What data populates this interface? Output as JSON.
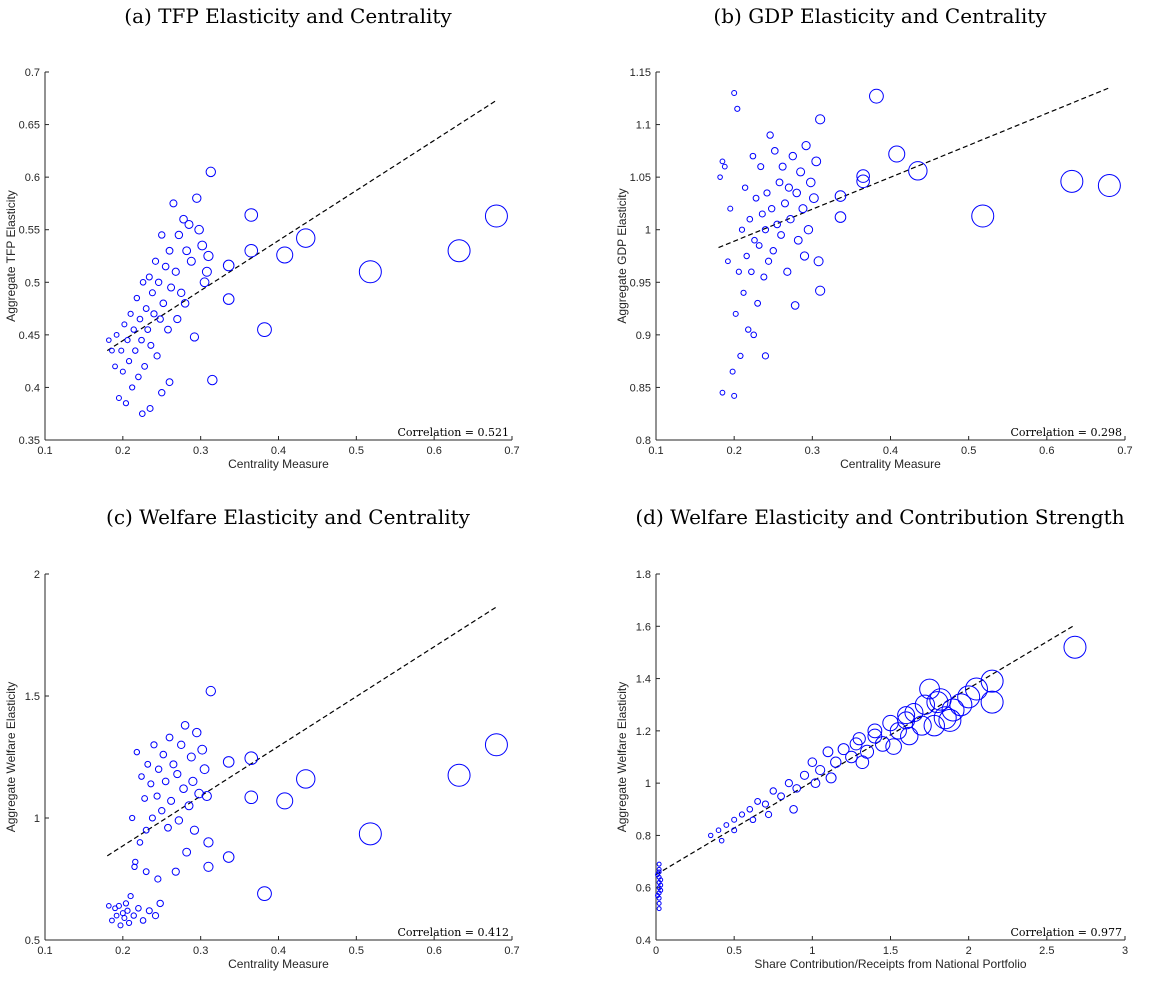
{
  "figure": {
    "titles": [
      "(a) TFP Elasticity and Centrality",
      "(b) GDP Elasticity and Centrality",
      "(c) Welfare Elasticity and Centrality",
      "(d) Welfare Elasticity and Contribution Strength"
    ]
  },
  "chart_data": [
    {
      "type": "scatter",
      "title": "(a) TFP Elasticity and Centrality",
      "xlabel": "Centrality Measure",
      "ylabel": "Aggregate TFP Elasticity",
      "xlim": [
        0.1,
        0.7
      ],
      "ylim": [
        0.35,
        0.7
      ],
      "xticks": [
        0.1,
        0.2,
        0.3,
        0.4,
        0.5,
        0.6,
        0.7
      ],
      "yticks": [
        0.35,
        0.4,
        0.45,
        0.5,
        0.55,
        0.6,
        0.65,
        0.7
      ],
      "annotation": "Correlation = 0.521",
      "color": "#0000ff",
      "grid": false,
      "fit_line": {
        "x": [
          0.18,
          0.68
        ],
        "y": [
          0.435,
          0.673
        ]
      },
      "points": [
        [
          0.68,
          0.563
        ],
        [
          0.632,
          0.53
        ],
        [
          0.518,
          0.51
        ],
        [
          0.435,
          0.542
        ],
        [
          0.408,
          0.526
        ],
        [
          0.382,
          0.455
        ],
        [
          0.365,
          0.564
        ],
        [
          0.365,
          0.53
        ],
        [
          0.336,
          0.484
        ],
        [
          0.336,
          0.516
        ],
        [
          0.315,
          0.407
        ],
        [
          0.313,
          0.605
        ],
        [
          0.31,
          0.525
        ],
        [
          0.308,
          0.51
        ],
        [
          0.305,
          0.5
        ],
        [
          0.302,
          0.535
        ],
        [
          0.298,
          0.55
        ],
        [
          0.295,
          0.58
        ],
        [
          0.292,
          0.448
        ],
        [
          0.288,
          0.52
        ],
        [
          0.285,
          0.555
        ],
        [
          0.282,
          0.53
        ],
        [
          0.28,
          0.48
        ],
        [
          0.278,
          0.56
        ],
        [
          0.275,
          0.49
        ],
        [
          0.272,
          0.545
        ],
        [
          0.27,
          0.465
        ],
        [
          0.268,
          0.51
        ],
        [
          0.265,
          0.575
        ],
        [
          0.262,
          0.495
        ],
        [
          0.26,
          0.53
        ],
        [
          0.258,
          0.455
        ],
        [
          0.255,
          0.515
        ],
        [
          0.252,
          0.48
        ],
        [
          0.25,
          0.545
        ],
        [
          0.248,
          0.465
        ],
        [
          0.246,
          0.5
        ],
        [
          0.244,
          0.43
        ],
        [
          0.242,
          0.52
        ],
        [
          0.24,
          0.47
        ],
        [
          0.238,
          0.49
        ],
        [
          0.236,
          0.44
        ],
        [
          0.234,
          0.505
        ],
        [
          0.232,
          0.455
        ],
        [
          0.23,
          0.475
        ],
        [
          0.228,
          0.42
        ],
        [
          0.226,
          0.5
        ],
        [
          0.224,
          0.445
        ],
        [
          0.222,
          0.465
        ],
        [
          0.22,
          0.41
        ],
        [
          0.218,
          0.485
        ],
        [
          0.216,
          0.435
        ],
        [
          0.214,
          0.455
        ],
        [
          0.212,
          0.4
        ],
        [
          0.21,
          0.47
        ],
        [
          0.208,
          0.425
        ],
        [
          0.206,
          0.445
        ],
        [
          0.204,
          0.385
        ],
        [
          0.202,
          0.46
        ],
        [
          0.2,
          0.415
        ],
        [
          0.198,
          0.435
        ],
        [
          0.195,
          0.39
        ],
        [
          0.192,
          0.45
        ],
        [
          0.19,
          0.42
        ],
        [
          0.186,
          0.435
        ],
        [
          0.182,
          0.445
        ],
        [
          0.25,
          0.395
        ],
        [
          0.26,
          0.405
        ],
        [
          0.225,
          0.375
        ],
        [
          0.235,
          0.38
        ]
      ]
    },
    {
      "type": "scatter",
      "title": "(b) GDP Elasticity and Centrality",
      "xlabel": "Centrality Measure",
      "ylabel": "Aggregate GDP Elasticity",
      "xlim": [
        0.1,
        0.7
      ],
      "ylim": [
        0.8,
        1.15
      ],
      "xticks": [
        0.1,
        0.2,
        0.3,
        0.4,
        0.5,
        0.6,
        0.7
      ],
      "yticks": [
        0.8,
        0.85,
        0.9,
        0.95,
        1,
        1.05,
        1.1,
        1.15
      ],
      "annotation": "Correlation = 0.298",
      "color": "#0000ff",
      "grid": false,
      "fit_line": {
        "x": [
          0.18,
          0.68
        ],
        "y": [
          0.983,
          1.135
        ]
      },
      "points": [
        [
          0.68,
          1.042
        ],
        [
          0.632,
          1.046
        ],
        [
          0.518,
          1.013
        ],
        [
          0.435,
          1.056
        ],
        [
          0.408,
          1.072
        ],
        [
          0.382,
          1.127
        ],
        [
          0.365,
          1.046
        ],
        [
          0.365,
          1.051
        ],
        [
          0.336,
          1.032
        ],
        [
          0.336,
          1.012
        ],
        [
          0.31,
          1.105
        ],
        [
          0.31,
          0.942
        ],
        [
          0.308,
          0.97
        ],
        [
          0.305,
          1.065
        ],
        [
          0.302,
          1.03
        ],
        [
          0.298,
          1.045
        ],
        [
          0.295,
          1.0
        ],
        [
          0.292,
          1.08
        ],
        [
          0.29,
          0.975
        ],
        [
          0.288,
          1.02
        ],
        [
          0.285,
          1.055
        ],
        [
          0.282,
          0.99
        ],
        [
          0.28,
          1.035
        ],
        [
          0.278,
          0.928
        ],
        [
          0.275,
          1.07
        ],
        [
          0.272,
          1.01
        ],
        [
          0.27,
          1.04
        ],
        [
          0.268,
          0.96
        ],
        [
          0.265,
          1.025
        ],
        [
          0.262,
          1.06
        ],
        [
          0.26,
          0.995
        ],
        [
          0.258,
          1.045
        ],
        [
          0.255,
          1.005
        ],
        [
          0.252,
          1.075
        ],
        [
          0.25,
          0.98
        ],
        [
          0.248,
          1.02
        ],
        [
          0.246,
          1.09
        ],
        [
          0.244,
          0.97
        ],
        [
          0.242,
          1.035
        ],
        [
          0.24,
          1.0
        ],
        [
          0.238,
          0.955
        ],
        [
          0.236,
          1.015
        ],
        [
          0.234,
          1.06
        ],
        [
          0.232,
          0.985
        ],
        [
          0.23,
          0.93
        ],
        [
          0.228,
          1.03
        ],
        [
          0.226,
          0.99
        ],
        [
          0.224,
          1.07
        ],
        [
          0.222,
          0.96
        ],
        [
          0.22,
          1.01
        ],
        [
          0.218,
          0.905
        ],
        [
          0.216,
          0.975
        ],
        [
          0.214,
          1.04
        ],
        [
          0.212,
          0.94
        ],
        [
          0.21,
          1.0
        ],
        [
          0.208,
          0.88
        ],
        [
          0.206,
          0.96
        ],
        [
          0.204,
          1.115
        ],
        [
          0.202,
          0.92
        ],
        [
          0.2,
          1.13
        ],
        [
          0.2,
          0.842
        ],
        [
          0.198,
          0.865
        ],
        [
          0.195,
          1.02
        ],
        [
          0.192,
          0.97
        ],
        [
          0.188,
          1.06
        ],
        [
          0.185,
          1.065
        ],
        [
          0.182,
          1.05
        ],
        [
          0.185,
          0.845
        ],
        [
          0.225,
          0.9
        ],
        [
          0.24,
          0.88
        ]
      ]
    },
    {
      "type": "scatter",
      "title": "(c) Welfare Elasticity and Centrality",
      "xlabel": "Centrality Measure",
      "ylabel": "Aggregate Welfare Elasticity",
      "xlim": [
        0.1,
        0.7
      ],
      "ylim": [
        0.5,
        2
      ],
      "xticks": [
        0.1,
        0.2,
        0.3,
        0.4,
        0.5,
        0.6,
        0.7
      ],
      "yticks": [
        0.5,
        1,
        1.5,
        2
      ],
      "annotation": "Correlation = 0.412",
      "color": "#0000ff",
      "grid": false,
      "fit_line": {
        "x": [
          0.18,
          0.68
        ],
        "y": [
          0.845,
          1.865
        ]
      },
      "points": [
        [
          0.68,
          1.3
        ],
        [
          0.632,
          1.175
        ],
        [
          0.518,
          0.935
        ],
        [
          0.435,
          1.16
        ],
        [
          0.408,
          1.07
        ],
        [
          0.382,
          0.69
        ],
        [
          0.365,
          1.245
        ],
        [
          0.365,
          1.085
        ],
        [
          0.336,
          1.23
        ],
        [
          0.336,
          0.84
        ],
        [
          0.313,
          1.52
        ],
        [
          0.31,
          0.9
        ],
        [
          0.31,
          0.8
        ],
        [
          0.308,
          1.09
        ],
        [
          0.305,
          1.2
        ],
        [
          0.302,
          1.28
        ],
        [
          0.298,
          1.1
        ],
        [
          0.295,
          1.35
        ],
        [
          0.292,
          0.95
        ],
        [
          0.29,
          1.15
        ],
        [
          0.288,
          1.25
        ],
        [
          0.285,
          1.05
        ],
        [
          0.282,
          0.86
        ],
        [
          0.28,
          1.38
        ],
        [
          0.278,
          1.12
        ],
        [
          0.275,
          1.3
        ],
        [
          0.272,
          0.99
        ],
        [
          0.27,
          1.18
        ],
        [
          0.268,
          0.78
        ],
        [
          0.265,
          1.22
        ],
        [
          0.262,
          1.07
        ],
        [
          0.26,
          1.33
        ],
        [
          0.258,
          0.96
        ],
        [
          0.255,
          1.15
        ],
        [
          0.252,
          1.26
        ],
        [
          0.25,
          1.03
        ],
        [
          0.248,
          0.65
        ],
        [
          0.246,
          1.2
        ],
        [
          0.244,
          1.09
        ],
        [
          0.242,
          0.6
        ],
        [
          0.24,
          1.3
        ],
        [
          0.238,
          1.0
        ],
        [
          0.236,
          1.14
        ],
        [
          0.234,
          0.62
        ],
        [
          0.232,
          1.22
        ],
        [
          0.23,
          0.95
        ],
        [
          0.228,
          1.08
        ],
        [
          0.226,
          0.58
        ],
        [
          0.224,
          1.17
        ],
        [
          0.222,
          0.9
        ],
        [
          0.22,
          0.63
        ],
        [
          0.218,
          1.27
        ],
        [
          0.216,
          0.82
        ],
        [
          0.214,
          0.6
        ],
        [
          0.212,
          1.0
        ],
        [
          0.21,
          0.68
        ],
        [
          0.208,
          0.57
        ],
        [
          0.206,
          0.62
        ],
        [
          0.204,
          0.65
        ],
        [
          0.202,
          0.59
        ],
        [
          0.2,
          0.61
        ],
        [
          0.197,
          0.56
        ],
        [
          0.195,
          0.64
        ],
        [
          0.192,
          0.6
        ],
        [
          0.19,
          0.63
        ],
        [
          0.186,
          0.58
        ],
        [
          0.182,
          0.64
        ],
        [
          0.215,
          0.8
        ],
        [
          0.23,
          0.78
        ],
        [
          0.245,
          0.75
        ]
      ]
    },
    {
      "type": "scatter",
      "title": "(d) Welfare Elasticity and Contribution Strength",
      "xlabel": "Share Contribution/Receipts from National Portfolio",
      "ylabel": "Aggregate Welfare Elasticity",
      "xlim": [
        0,
        3
      ],
      "ylim": [
        0.4,
        1.8
      ],
      "xticks": [
        0,
        0.5,
        1,
        1.5,
        2,
        2.5,
        3
      ],
      "yticks": [
        0.4,
        0.6,
        0.8,
        1,
        1.2,
        1.4,
        1.6,
        1.8
      ],
      "annotation": "Correlation = 0.977",
      "color": "#0000ff",
      "grid": false,
      "fit_line": {
        "x": [
          0.0,
          2.68
        ],
        "y": [
          0.65,
          1.605
        ]
      },
      "points": [
        [
          2.68,
          1.52
        ],
        [
          2.15,
          1.39
        ],
        [
          2.15,
          1.31
        ],
        [
          2.05,
          1.36
        ],
        [
          1.95,
          1.3
        ],
        [
          1.9,
          1.28
        ],
        [
          1.85,
          1.25
        ],
        [
          1.8,
          1.31
        ],
        [
          1.75,
          1.36
        ],
        [
          1.72,
          1.3
        ],
        [
          1.7,
          1.22
        ],
        [
          1.65,
          1.27
        ],
        [
          1.6,
          1.24
        ],
        [
          1.55,
          1.2
        ],
        [
          1.5,
          1.23
        ],
        [
          1.45,
          1.15
        ],
        [
          1.4,
          1.18
        ],
        [
          1.35,
          1.12
        ],
        [
          1.3,
          1.17
        ],
        [
          1.28,
          1.15
        ],
        [
          1.25,
          1.1
        ],
        [
          1.2,
          1.13
        ],
        [
          1.15,
          1.08
        ],
        [
          1.1,
          1.12
        ],
        [
          1.05,
          1.05
        ],
        [
          1.0,
          1.08
        ],
        [
          0.95,
          1.03
        ],
        [
          0.9,
          0.98
        ],
        [
          0.85,
          1.0
        ],
        [
          0.8,
          0.95
        ],
        [
          0.75,
          0.97
        ],
        [
          0.7,
          0.92
        ],
        [
          0.65,
          0.93
        ],
        [
          0.6,
          0.9
        ],
        [
          0.55,
          0.88
        ],
        [
          0.5,
          0.86
        ],
        [
          0.45,
          0.84
        ],
        [
          0.4,
          0.82
        ],
        [
          0.35,
          0.8
        ],
        [
          0.42,
          0.78
        ],
        [
          0.5,
          0.82
        ],
        [
          0.62,
          0.86
        ],
        [
          0.72,
          0.88
        ],
        [
          0.88,
          0.9
        ],
        [
          1.02,
          1.0
        ],
        [
          1.12,
          1.02
        ],
        [
          1.32,
          1.08
        ],
        [
          1.52,
          1.14
        ],
        [
          1.62,
          1.18
        ],
        [
          1.78,
          1.22
        ],
        [
          1.88,
          1.24
        ],
        [
          2.0,
          1.33
        ],
        [
          1.4,
          1.2
        ],
        [
          1.6,
          1.26
        ],
        [
          1.82,
          1.32
        ],
        [
          0.02,
          0.69
        ],
        [
          0.02,
          0.66
        ],
        [
          0.02,
          0.64
        ],
        [
          0.02,
          0.62
        ],
        [
          0.02,
          0.6
        ],
        [
          0.02,
          0.58
        ],
        [
          0.02,
          0.56
        ],
        [
          0.02,
          0.54
        ],
        [
          0.02,
          0.52
        ],
        [
          0.02,
          0.67
        ],
        [
          0.03,
          0.63
        ],
        [
          0.03,
          0.61
        ],
        [
          0.03,
          0.59
        ],
        [
          0.01,
          0.65
        ],
        [
          0.01,
          0.57
        ]
      ]
    }
  ]
}
